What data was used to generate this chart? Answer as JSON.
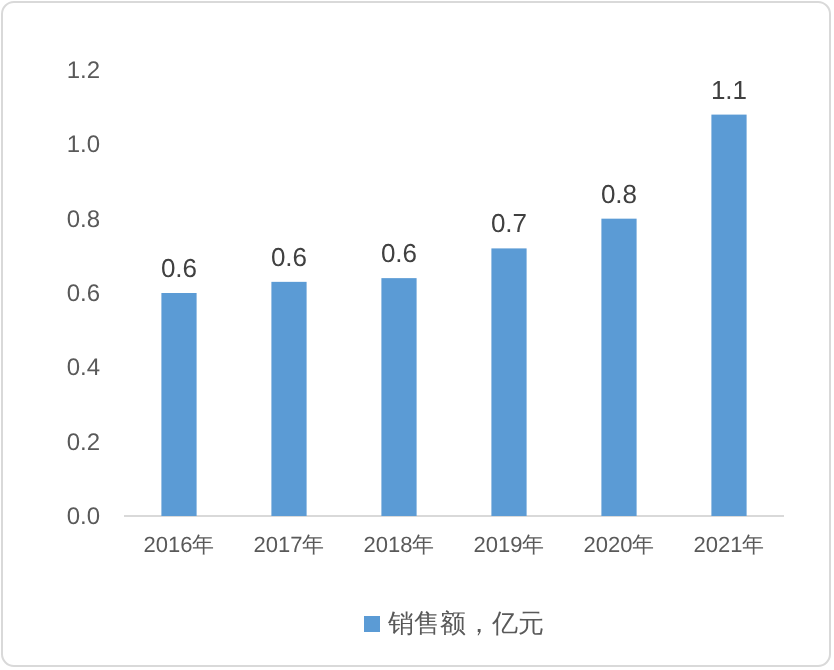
{
  "chart_data": {
    "type": "bar",
    "categories": [
      "2016年",
      "2017年",
      "2018年",
      "2019年",
      "2020年",
      "2021年"
    ],
    "series": [
      {
        "name": "销售额，亿元",
        "color": "#5b9bd5",
        "values": [
          0.6,
          0.63,
          0.64,
          0.72,
          0.8,
          1.08
        ],
        "value_labels": [
          "0.6",
          "0.6",
          "0.6",
          "0.7",
          "0.8",
          "1.1"
        ]
      }
    ],
    "ylim": [
      0,
      1.2
    ],
    "yticks": [
      {
        "value": 0,
        "label": "0.0"
      },
      {
        "value": 0.2,
        "label": "0.2"
      },
      {
        "value": 0.4,
        "label": "0.4"
      },
      {
        "value": 0.6,
        "label": "0.6"
      },
      {
        "value": 0.8,
        "label": "0.8"
      },
      {
        "value": 1,
        "label": "1.0"
      },
      {
        "value": 1.2,
        "label": "1.2"
      }
    ],
    "legend": "bottom"
  }
}
